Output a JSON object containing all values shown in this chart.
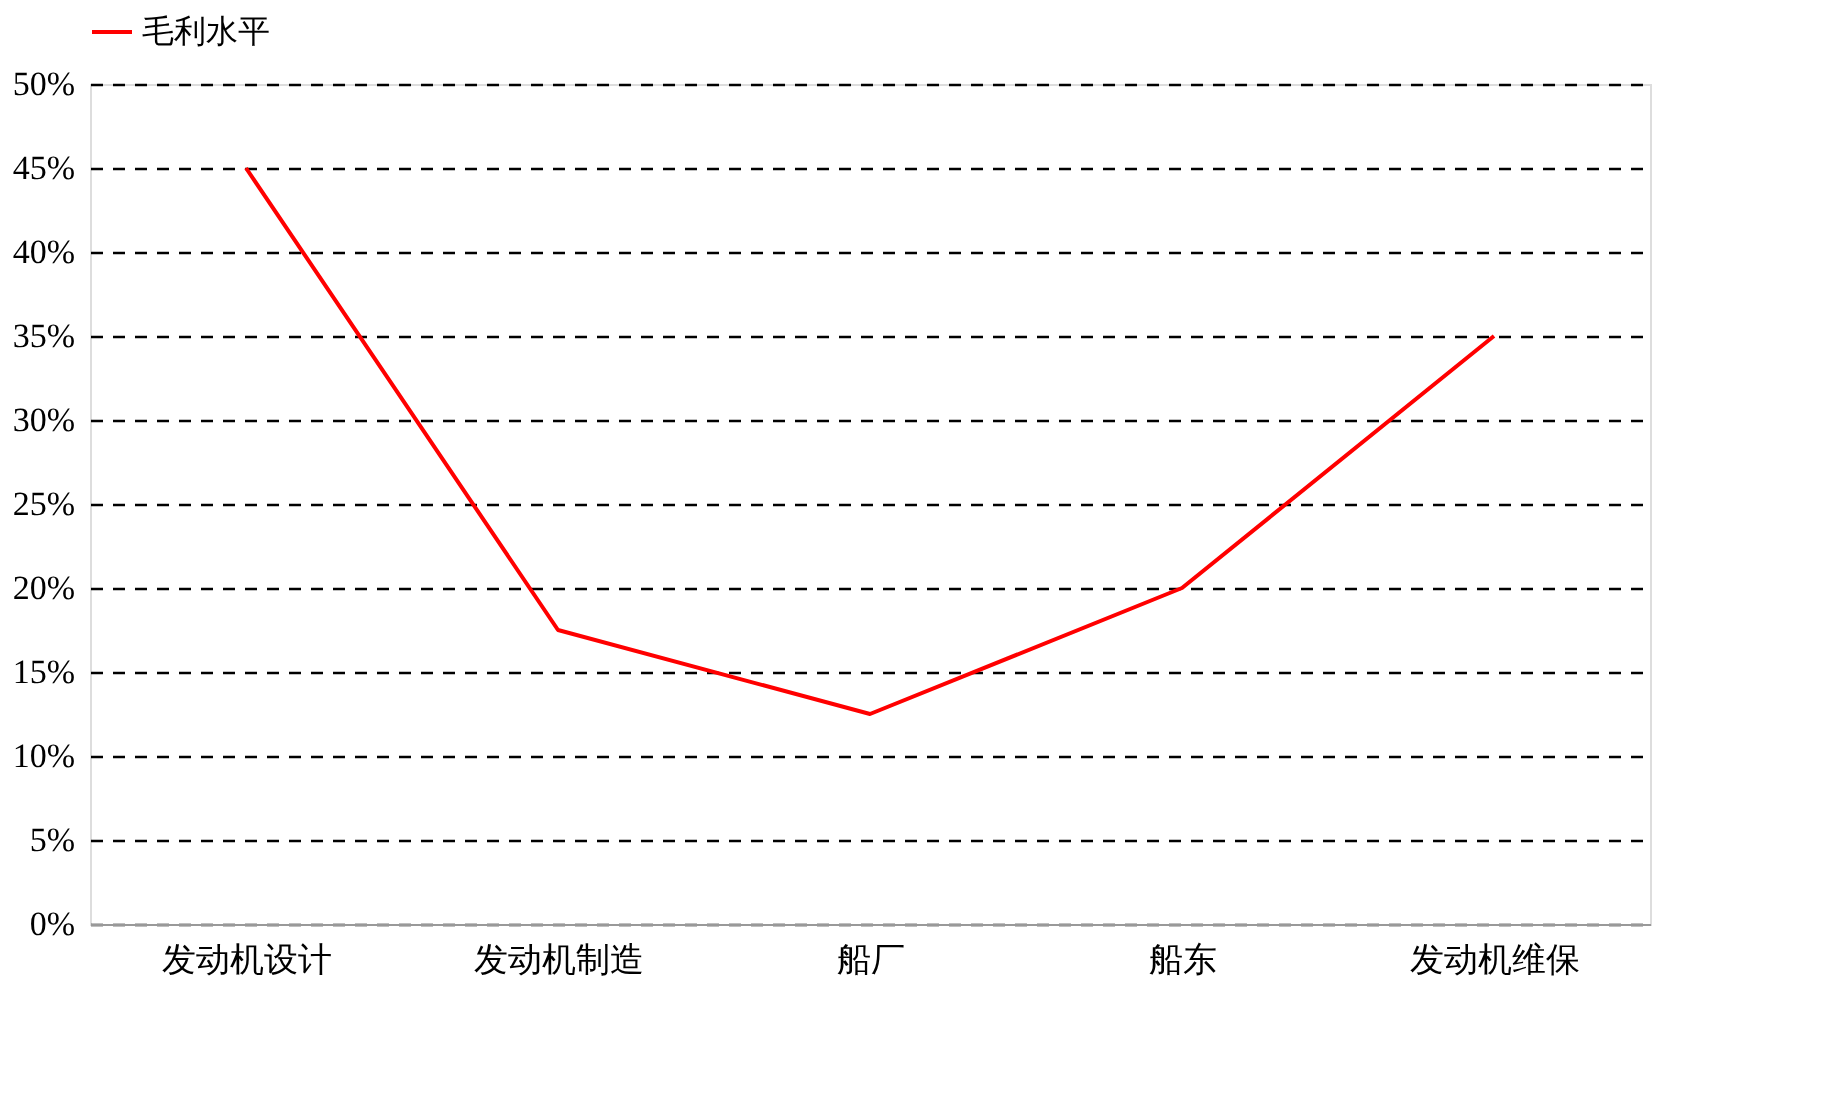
{
  "chart_data": {
    "type": "line",
    "categories": [
      "发动机设计",
      "发动机制造",
      "船厂",
      "船东",
      "发动机维保"
    ],
    "series": [
      {
        "name": "毛利水平",
        "color": "#ff0000",
        "values": [
          45,
          17.5,
          12.5,
          20,
          35
        ]
      }
    ],
    "ylim": [
      0,
      50
    ],
    "yticks": [
      {
        "value": 0,
        "label": "0%"
      },
      {
        "value": 5,
        "label": "5%"
      },
      {
        "value": 10,
        "label": "10%"
      },
      {
        "value": 15,
        "label": "15%"
      },
      {
        "value": 20,
        "label": "20%"
      },
      {
        "value": 25,
        "label": "25%"
      },
      {
        "value": 30,
        "label": "30%"
      },
      {
        "value": 35,
        "label": "35%"
      },
      {
        "value": 40,
        "label": "40%"
      },
      {
        "value": 45,
        "label": "45%"
      },
      {
        "value": 50,
        "label": "50%"
      }
    ],
    "grid": "y",
    "legend": "top",
    "marker": "none",
    "line_style": "solid"
  }
}
